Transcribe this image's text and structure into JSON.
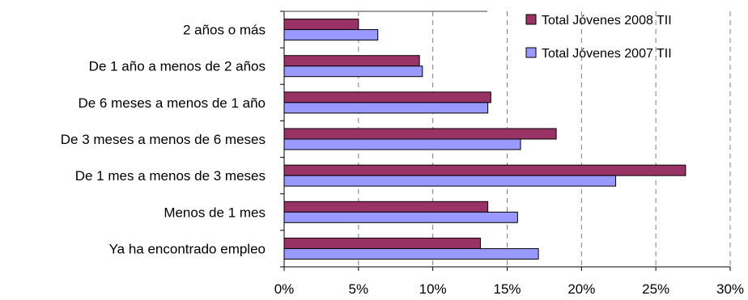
{
  "chart_data": {
    "type": "bar",
    "orientation": "horizontal",
    "categories": [
      "2 años o más",
      "De 1 año a menos de 2 años",
      "De 6 meses a menos de 1 año",
      "De 3 meses a menos de 6 meses",
      "De 1 mes a menos de 3 meses",
      "Menos de 1 mes",
      "Ya ha encontrado empleo"
    ],
    "series": [
      {
        "name": "Total Jóvenes 2008 TII",
        "color": "#993366",
        "values": [
          5.0,
          9.1,
          13.9,
          18.3,
          27.0,
          13.7,
          13.2
        ]
      },
      {
        "name": "Total Jóvenes 2007 TII",
        "color": "#9999ff",
        "values": [
          6.3,
          9.3,
          13.7,
          15.9,
          22.3,
          15.7,
          17.1
        ]
      }
    ],
    "xlim": [
      0,
      30
    ],
    "xticks": [
      "0%",
      "5%",
      "10%",
      "15%",
      "20%",
      "25%",
      "30%"
    ],
    "grid": "vertical dashed",
    "legend": "top-right"
  }
}
